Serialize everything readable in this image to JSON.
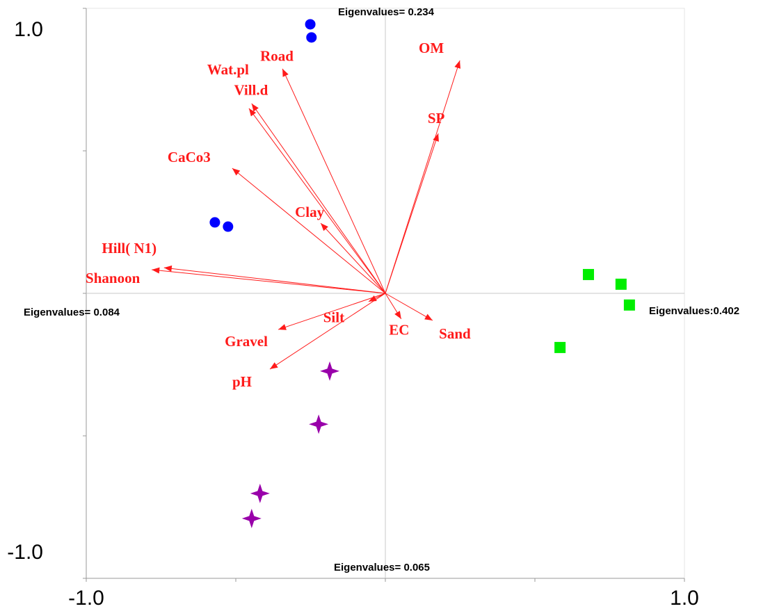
{
  "chart_data": {
    "type": "biplot",
    "xlim": [
      -1,
      1
    ],
    "ylim": [
      -1,
      1
    ],
    "xticks": [
      {
        "value": -1,
        "label": "-1.0"
      },
      {
        "value": 1,
        "label": "1.0"
      }
    ],
    "yticks": [
      {
        "value": -1,
        "label": "-1.0"
      },
      {
        "value": 1,
        "label": "1.0"
      }
    ],
    "xminorticks": [
      -0.5,
      0,
      0.5
    ],
    "yminorticks": [
      -0.5,
      0,
      0.5
    ],
    "annotations": {
      "top": "Eigenvalues= 0.234",
      "left": "Eigenvalues= 0.084",
      "right": "Eigenvalues:0.402",
      "bottom": "Eigenvalues= 0.065"
    },
    "vectors": {
      "color": "#ff1a1a",
      "labels": [
        "OM",
        "SP",
        "Road",
        "Wat.pl",
        "Vill.d",
        "CaCo3",
        "Clay",
        "Hill( N1)",
        "Shanoon",
        "Silt",
        "Gravel",
        "pH",
        "EC",
        "Sand"
      ],
      "x": [
        0.249,
        0.177,
        -0.344,
        -0.447,
        -0.456,
        -0.512,
        -0.216,
        -0.74,
        -0.781,
        -0.056,
        -0.358,
        -0.386,
        0.053,
        0.158
      ],
      "y": [
        0.817,
        0.561,
        0.788,
        0.666,
        0.649,
        0.439,
        0.246,
        0.09,
        0.083,
        -0.029,
        -0.127,
        -0.266,
        -0.09,
        -0.095
      ]
    },
    "series": [
      {
        "color": "#0000ff",
        "marker": "circle",
        "x": [
          -0.251,
          -0.247,
          -0.57,
          -0.526
        ],
        "y": [
          0.944,
          0.898,
          0.249,
          0.234
        ]
      },
      {
        "color": "#00ee00",
        "marker": "square",
        "x": [
          0.679,
          0.788,
          0.816,
          0.584
        ],
        "y": [
          0.066,
          0.032,
          -0.041,
          -0.19
        ]
      },
      {
        "color": "#9900aa",
        "marker": "star",
        "x": [
          -0.186,
          -0.223,
          -0.419,
          -0.447
        ],
        "y": [
          -0.273,
          -0.459,
          -0.702,
          -0.79
        ]
      }
    ]
  }
}
